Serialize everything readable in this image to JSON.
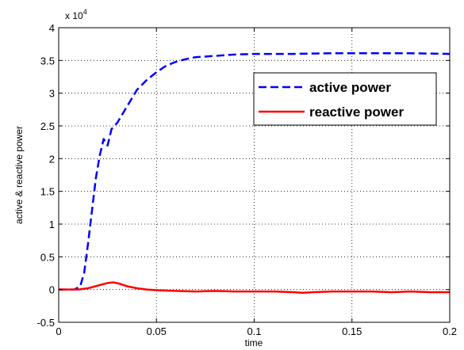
{
  "chart_data": {
    "type": "line",
    "title": "",
    "xlabel": "time",
    "ylabel": "active & reactive power",
    "xlim": [
      0,
      0.2
    ],
    "ylim": [
      -0.5,
      4
    ],
    "y_scale_factor_label": "x 10",
    "y_scale_factor_exponent": "4",
    "grid": true,
    "legend_position": "top-right",
    "x_ticks": [
      "0",
      "0.05",
      "0.1",
      "0.15",
      "0.2"
    ],
    "y_ticks": [
      "-0.5",
      "0",
      "0.5",
      "1",
      "1.5",
      "2",
      "2.5",
      "3",
      "3.5",
      "4"
    ],
    "series": [
      {
        "name": "active power",
        "color": "#0000ff",
        "style": "dashed",
        "x": [
          0,
          0.008,
          0.011,
          0.013,
          0.015,
          0.017,
          0.019,
          0.021,
          0.023,
          0.025,
          0.027,
          0.03,
          0.035,
          0.04,
          0.045,
          0.05,
          0.055,
          0.06,
          0.065,
          0.07,
          0.08,
          0.09,
          0.1,
          0.12,
          0.14,
          0.16,
          0.18,
          0.2
        ],
        "y": [
          0,
          0,
          0.05,
          0.25,
          0.7,
          1.2,
          1.7,
          2.05,
          2.3,
          2.2,
          2.45,
          2.55,
          2.8,
          3.05,
          3.2,
          3.32,
          3.42,
          3.48,
          3.52,
          3.55,
          3.57,
          3.59,
          3.6,
          3.6,
          3.61,
          3.61,
          3.61,
          3.6
        ]
      },
      {
        "name": "reactive power",
        "color": "#ff0000",
        "style": "solid",
        "x": [
          0,
          0.01,
          0.015,
          0.02,
          0.025,
          0.028,
          0.031,
          0.035,
          0.04,
          0.045,
          0.05,
          0.06,
          0.07,
          0.08,
          0.09,
          0.1,
          0.11,
          0.12,
          0.125,
          0.13,
          0.14,
          0.15,
          0.16,
          0.17,
          0.18,
          0.19,
          0.2
        ],
        "y": [
          0,
          0,
          0.02,
          0.06,
          0.1,
          0.11,
          0.09,
          0.05,
          0.02,
          0.0,
          -0.01,
          -0.02,
          -0.03,
          -0.02,
          -0.03,
          -0.03,
          -0.03,
          -0.04,
          -0.05,
          -0.04,
          -0.03,
          -0.03,
          -0.03,
          -0.04,
          -0.03,
          -0.04,
          -0.04
        ]
      }
    ]
  }
}
